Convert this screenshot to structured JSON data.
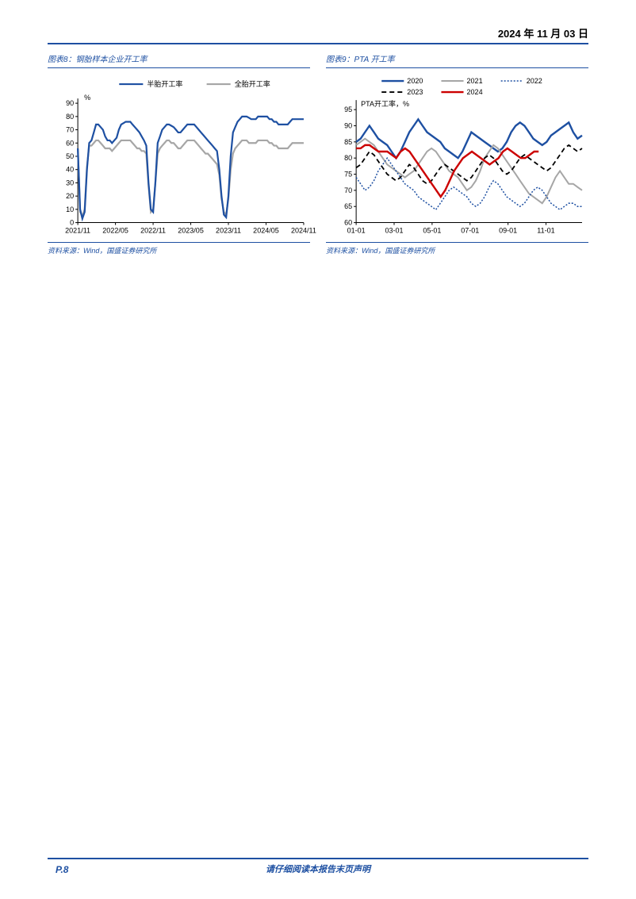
{
  "header_date": "2024 年 11 月 03 日",
  "page_number": "P.8",
  "footer_disclaimer": "请仔细阅读本报告末页声明",
  "chart_left": {
    "title": "图表8：钢胎样本企业开工率",
    "source": "资料来源：Wind，国盛证券研究所",
    "y_axis_unit": "%",
    "legend": [
      {
        "label": "半胎开工率",
        "color": "#1e50a2",
        "width": 2.2
      },
      {
        "label": "全胎开工率",
        "color": "#a6a6a6",
        "width": 2.2
      }
    ],
    "y_min": 0,
    "y_max": 90,
    "y_step": 10,
    "x_labels": [
      "2021/11",
      "2022/05",
      "2022/11",
      "2023/05",
      "2023/11",
      "2024/05",
      "2024/11"
    ],
    "series_half": [
      56,
      10,
      3,
      8,
      40,
      60,
      62,
      68,
      74,
      74,
      72,
      70,
      65,
      62,
      62,
      60,
      62,
      64,
      70,
      74,
      75,
      76,
      76,
      76,
      74,
      72,
      70,
      68,
      65,
      62,
      58,
      30,
      10,
      8,
      30,
      60,
      65,
      70,
      72,
      74,
      74,
      73,
      72,
      70,
      68,
      68,
      70,
      72,
      74,
      74,
      74,
      74,
      72,
      70,
      68,
      66,
      64,
      62,
      60,
      58,
      56,
      54,
      40,
      20,
      6,
      4,
      20,
      50,
      68,
      72,
      76,
      78,
      80,
      80,
      80,
      79,
      78,
      78,
      78,
      80,
      80,
      80,
      80,
      80,
      78,
      78,
      76,
      76,
      74,
      74,
      74,
      74,
      74,
      76,
      78,
      78,
      78,
      78,
      78,
      78
    ],
    "series_full": [
      56,
      8,
      5,
      10,
      42,
      58,
      58,
      60,
      62,
      62,
      60,
      58,
      56,
      56,
      56,
      54,
      56,
      58,
      60,
      62,
      62,
      62,
      62,
      62,
      60,
      58,
      56,
      56,
      54,
      54,
      52,
      28,
      8,
      10,
      30,
      52,
      56,
      58,
      60,
      62,
      62,
      60,
      60,
      58,
      56,
      56,
      58,
      60,
      62,
      62,
      62,
      62,
      60,
      58,
      56,
      54,
      52,
      52,
      50,
      48,
      46,
      44,
      36,
      18,
      8,
      6,
      18,
      40,
      52,
      56,
      58,
      60,
      62,
      62,
      62,
      60,
      60,
      60,
      60,
      62,
      62,
      62,
      62,
      62,
      60,
      60,
      58,
      58,
      56,
      56,
      56,
      56,
      56,
      58,
      60,
      60,
      60,
      60,
      60,
      60
    ],
    "background_color": "#ffffff",
    "axis_color": "#000000",
    "tick_fontsize": 9
  },
  "chart_right": {
    "title": "图表9：PTA 开工率",
    "source": "资料来源：Wind，国盛证券研究所",
    "y_axis_unit": "PTA开工率，%",
    "legend": [
      {
        "label": "2020",
        "color": "#1e50a2",
        "width": 2.4,
        "dash": "none"
      },
      {
        "label": "2021",
        "color": "#a6a6a6",
        "width": 2.0,
        "dash": "none"
      },
      {
        "label": "2022",
        "color": "#1e50a2",
        "width": 1.5,
        "dash": "2,2"
      },
      {
        "label": "2023",
        "color": "#000000",
        "width": 1.8,
        "dash": "6,4"
      },
      {
        "label": "2024",
        "color": "#cc0000",
        "width": 2.4,
        "dash": "none"
      }
    ],
    "y_min": 60,
    "y_max": 95,
    "y_step": 5,
    "x_labels": [
      "01-01",
      "03-01",
      "05-01",
      "07-01",
      "09-01",
      "11-01"
    ],
    "series_2020": [
      85,
      86,
      88,
      90,
      88,
      86,
      85,
      84,
      82,
      80,
      82,
      85,
      88,
      90,
      92,
      90,
      88,
      87,
      86,
      85,
      83,
      82,
      81,
      80,
      82,
      85,
      88,
      87,
      86,
      85,
      84,
      83,
      82,
      83,
      85,
      88,
      90,
      91,
      90,
      88,
      86,
      85,
      84,
      85,
      87,
      88,
      89,
      90,
      91,
      88,
      86,
      87
    ],
    "series_2021": [
      84,
      85,
      86,
      85,
      84,
      82,
      80,
      78,
      77,
      76,
      75,
      74,
      75,
      76,
      78,
      80,
      82,
      83,
      82,
      80,
      78,
      76,
      75,
      74,
      72,
      70,
      71,
      73,
      76,
      80,
      82,
      84,
      83,
      81,
      79,
      77,
      75,
      73,
      71,
      69,
      68,
      67,
      66,
      68,
      71,
      74,
      76,
      74,
      72,
      72,
      71,
      70
    ],
    "series_2022": [
      74,
      72,
      70,
      71,
      73,
      76,
      78,
      80,
      78,
      76,
      74,
      72,
      71,
      70,
      68,
      67,
      66,
      65,
      64,
      66,
      68,
      70,
      71,
      70,
      69,
      68,
      66,
      65,
      66,
      68,
      71,
      73,
      72,
      70,
      68,
      67,
      66,
      65,
      66,
      68,
      70,
      71,
      70,
      68,
      66,
      65,
      64,
      65,
      66,
      66,
      65,
      65
    ],
    "series_2023": [
      77,
      78,
      80,
      82,
      81,
      79,
      77,
      75,
      74,
      73,
      74,
      76,
      78,
      77,
      75,
      73,
      72,
      73,
      75,
      77,
      78,
      77,
      76,
      75,
      74,
      73,
      74,
      76,
      78,
      80,
      81,
      80,
      78,
      76,
      75,
      76,
      78,
      80,
      81,
      80,
      79,
      78,
      77,
      76,
      77,
      79,
      81,
      83,
      84,
      83,
      82,
      83
    ],
    "series_2024": [
      83,
      83,
      84,
      84,
      83,
      82,
      82,
      82,
      81,
      80,
      82,
      83,
      82,
      80,
      78,
      76,
      74,
      72,
      70,
      68,
      70,
      73,
      76,
      78,
      80,
      81,
      82,
      81,
      80,
      79,
      78,
      79,
      80,
      82,
      83,
      82,
      81,
      80,
      80,
      81,
      82,
      82
    ],
    "background_color": "#ffffff",
    "axis_color": "#000000",
    "tick_fontsize": 9
  }
}
